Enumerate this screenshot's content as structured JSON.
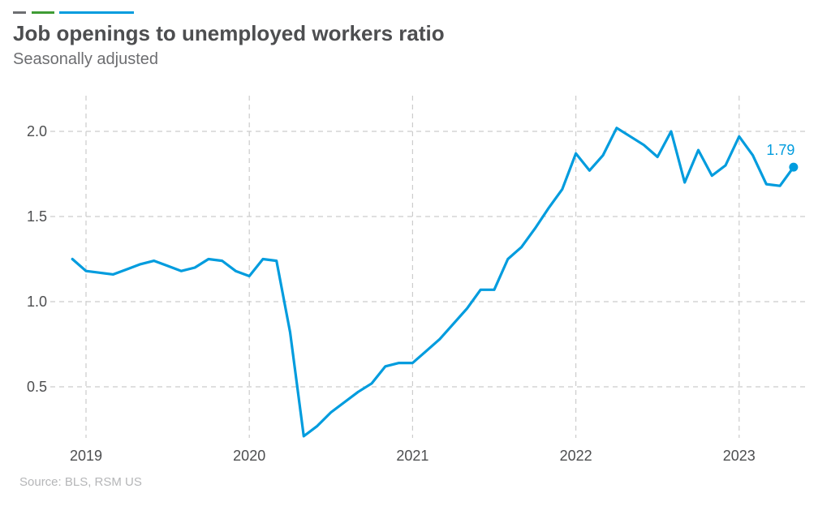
{
  "header": {
    "title": "Job openings to unemployed workers ratio",
    "subtitle": "Seasonally adjusted"
  },
  "footer": {
    "source": "Source: BLS, RSM US"
  },
  "colors": {
    "line": "#009cde",
    "text": "#4d4e50",
    "grid": "#cccccc"
  },
  "chart_data": {
    "type": "line",
    "title": "Job openings to unemployed workers ratio",
    "subtitle": "Seasonally adjusted",
    "xlabel": "",
    "ylabel": "",
    "x_tick_labels": [
      "2019",
      "2020",
      "2021",
      "2022",
      "2023"
    ],
    "y_ticks": [
      0.5,
      1.0,
      1.5,
      2.0
    ],
    "y_tick_labels": [
      "0.5",
      "1.0",
      "1.5",
      "2.0"
    ],
    "ylim": [
      0.2,
      2.2
    ],
    "grid": true,
    "legend": "none",
    "annotation": {
      "text": "1.79",
      "x": "2023-05",
      "y": 1.79
    },
    "series": [
      {
        "x": [
          "2018-12",
          "2019-01",
          "2019-02",
          "2019-03",
          "2019-04",
          "2019-05",
          "2019-06",
          "2019-07",
          "2019-08",
          "2019-09",
          "2019-10",
          "2019-11",
          "2019-12",
          "2020-01",
          "2020-02",
          "2020-03",
          "2020-04",
          "2020-05",
          "2020-06",
          "2020-07",
          "2020-08",
          "2020-09",
          "2020-10",
          "2020-11",
          "2020-12",
          "2021-01",
          "2021-02",
          "2021-03",
          "2021-04",
          "2021-05",
          "2021-06",
          "2021-07",
          "2021-08",
          "2021-09",
          "2021-10",
          "2021-11",
          "2021-12",
          "2022-01",
          "2022-02",
          "2022-03",
          "2022-04",
          "2022-05",
          "2022-06",
          "2022-07",
          "2022-08",
          "2022-09",
          "2022-10",
          "2022-11",
          "2022-12",
          "2023-01",
          "2023-02",
          "2023-03",
          "2023-04",
          "2023-05"
        ],
        "values": [
          1.25,
          1.18,
          1.17,
          1.16,
          1.19,
          1.22,
          1.24,
          1.21,
          1.18,
          1.2,
          1.25,
          1.24,
          1.18,
          1.15,
          1.25,
          1.24,
          0.82,
          0.21,
          0.27,
          0.35,
          0.41,
          0.47,
          0.52,
          0.62,
          0.64,
          0.64,
          0.71,
          0.78,
          0.87,
          0.96,
          1.07,
          1.07,
          1.25,
          1.32,
          1.43,
          1.55,
          1.66,
          1.87,
          1.77,
          1.86,
          2.02,
          1.97,
          1.92,
          1.85,
          2.0,
          1.7,
          1.89,
          1.74,
          1.8,
          1.97,
          1.86,
          1.69,
          1.68,
          1.79
        ]
      }
    ]
  }
}
